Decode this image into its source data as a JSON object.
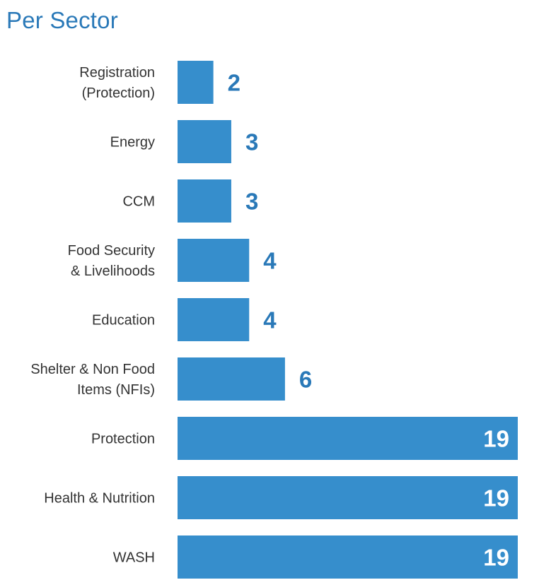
{
  "header": {
    "title": "Per Sector"
  },
  "colors": {
    "bar": "#368ecc",
    "title": "#2a79b8",
    "value_outside": "#2a79b8",
    "value_inside": "#ffffff",
    "category_text": "#333333"
  },
  "chart_data": {
    "type": "bar",
    "orientation": "horizontal",
    "title": "Per Sector",
    "xlabel": "",
    "ylabel": "",
    "grid": false,
    "legend": "none",
    "xlim": [
      0,
      19
    ],
    "categories": [
      [
        "Registration",
        "(Protection)"
      ],
      [
        "Energy"
      ],
      [
        "CCM"
      ],
      [
        "Food Security",
        "& Livelihoods"
      ],
      [
        "Education"
      ],
      [
        "Shelter & Non Food",
        "Items (NFIs)"
      ],
      [
        "Protection"
      ],
      [
        "Health & Nutrition"
      ],
      [
        "WASH"
      ]
    ],
    "values": [
      2,
      3,
      3,
      4,
      4,
      6,
      19,
      19,
      19
    ]
  }
}
